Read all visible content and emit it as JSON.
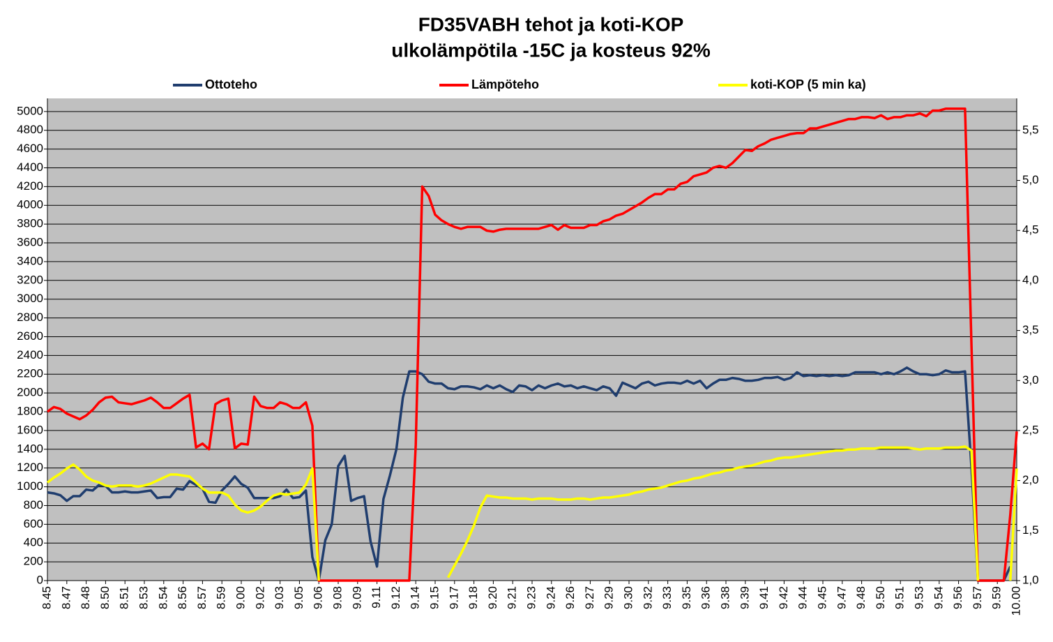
{
  "chart_data": {
    "type": "line",
    "title": "FD35VABH  tehot ja koti-KOP",
    "subtitle": "ulkolämpötila  -15C ja kosteus 92%",
    "categories": [
      "8.45",
      null,
      null,
      "8.47",
      null,
      null,
      "8.48",
      null,
      null,
      "8.50",
      null,
      null,
      "8.51",
      null,
      null,
      "8.53",
      null,
      null,
      "8.54",
      null,
      null,
      "8.56",
      null,
      null,
      "8.57",
      null,
      null,
      "8.59",
      null,
      null,
      "9.00",
      null,
      null,
      "9.02",
      null,
      null,
      "9.03",
      null,
      null,
      "9.05",
      null,
      null,
      "9.06",
      null,
      null,
      "9.08",
      null,
      null,
      "9.09",
      null,
      null,
      "9.11",
      null,
      null,
      "9.12",
      null,
      null,
      "9.14",
      null,
      null,
      "9.15",
      null,
      null,
      "9.17",
      null,
      null,
      "9.18",
      null,
      null,
      "9.20",
      null,
      null,
      "9.21",
      null,
      null,
      "9.23",
      null,
      null,
      "9.24",
      null,
      null,
      "9.26",
      null,
      null,
      "9.27",
      null,
      null,
      "9.29",
      null,
      null,
      "9.30",
      null,
      null,
      "9.32",
      null,
      null,
      "9.33",
      null,
      null,
      "9.35",
      null,
      null,
      "9.36",
      null,
      null,
      "9.38",
      null,
      null,
      "9.39",
      null,
      null,
      "9.41",
      null,
      null,
      "9.42",
      null,
      null,
      "9.44",
      null,
      null,
      "9.45",
      null,
      null,
      "9.47",
      null,
      null,
      "9.48",
      null,
      null,
      "9.50",
      null,
      null,
      "9.51",
      null,
      null,
      "9.53",
      null,
      null,
      "9.54",
      null,
      null,
      "9.56",
      null,
      null,
      "9.57",
      null,
      null,
      "9.59",
      null,
      null,
      "10.00"
    ],
    "series": [
      {
        "name": "Ottoteho",
        "color": "#1f3d6e",
        "values": [
          940,
          930,
          910,
          850,
          900,
          900,
          970,
          960,
          1020,
          1010,
          940,
          940,
          950,
          940,
          940,
          950,
          960,
          880,
          890,
          890,
          980,
          970,
          1060,
          1020,
          980,
          840,
          830,
          960,
          1030,
          1110,
          1030,
          990,
          880,
          880,
          880,
          880,
          900,
          970,
          880,
          890,
          960,
          250,
          0,
          430,
          600,
          1220,
          1330,
          850,
          880,
          900,
          420,
          150,
          870,
          1120,
          1400,
          1950,
          2230,
          2230,
          2200,
          2120,
          2100,
          2100,
          2050,
          2040,
          2070,
          2070,
          2060,
          2040,
          2080,
          2050,
          2080,
          2040,
          2010,
          2080,
          2070,
          2030,
          2080,
          2050,
          2080,
          2100,
          2070,
          2080,
          2050,
          2070,
          2050,
          2030,
          2070,
          2050,
          1970,
          2110,
          2080,
          2050,
          2100,
          2120,
          2080,
          2100,
          2110,
          2110,
          2100,
          2130,
          2100,
          2130,
          2050,
          2100,
          2140,
          2140,
          2160,
          2150,
          2130,
          2130,
          2140,
          2160,
          2160,
          2170,
          2140,
          2160,
          2220,
          2180,
          2190,
          2180,
          2190,
          2180,
          2190,
          2180,
          2190,
          2220,
          2220,
          2220,
          2220,
          2200,
          2220,
          2200,
          2230,
          2270,
          2230,
          2200,
          2200,
          2190,
          2200,
          2240,
          2220,
          2220,
          2230,
          1200,
          0,
          0,
          0,
          0,
          0,
          150,
          null
        ]
      },
      {
        "name": "Lämpöteho",
        "color": "#ff0000",
        "values": [
          1800,
          1850,
          1830,
          1780,
          1750,
          1720,
          1760,
          1820,
          1900,
          1950,
          1960,
          1900,
          1890,
          1880,
          1900,
          1920,
          1950,
          1900,
          1840,
          1840,
          1890,
          1940,
          1980,
          1420,
          1460,
          1400,
          1880,
          1920,
          1940,
          1410,
          1460,
          1450,
          1960,
          1860,
          1840,
          1840,
          1900,
          1880,
          1840,
          1840,
          1900,
          1650,
          0,
          0,
          0,
          0,
          0,
          0,
          0,
          0,
          0,
          0,
          0,
          0,
          0,
          0,
          0,
          1450,
          4200,
          4100,
          3900,
          3840,
          3800,
          3770,
          3750,
          3770,
          3770,
          3770,
          3730,
          3720,
          3740,
          3750,
          3750,
          3750,
          3750,
          3750,
          3750,
          3770,
          3790,
          3740,
          3790,
          3760,
          3760,
          3760,
          3790,
          3790,
          3830,
          3850,
          3890,
          3910,
          3950,
          3990,
          4030,
          4080,
          4120,
          4120,
          4170,
          4170,
          4230,
          4250,
          4310,
          4330,
          4350,
          4400,
          4420,
          4400,
          4450,
          4520,
          4590,
          4580,
          4630,
          4660,
          4700,
          4720,
          4740,
          4760,
          4770,
          4770,
          4820,
          4820,
          4840,
          4860,
          4880,
          4900,
          4920,
          4920,
          4940,
          4940,
          4930,
          4960,
          4920,
          4940,
          4940,
          4960,
          4960,
          4980,
          4950,
          5010,
          5010,
          5030,
          5030,
          5030,
          5030,
          2500,
          0,
          0,
          0,
          0,
          0,
          700,
          1590
        ]
      },
      {
        "name": "koti-KOP (5 min ka)",
        "color": "#ffff00",
        "axis": "y2",
        "values": [
          1.98,
          2.03,
          2.07,
          2.12,
          2.16,
          2.11,
          2.04,
          2,
          1.98,
          1.95,
          1.94,
          1.95,
          1.95,
          1.95,
          1.94,
          1.95,
          1.97,
          2,
          2.03,
          2.06,
          2.06,
          2.05,
          2.04,
          1.98,
          1.92,
          1.88,
          1.88,
          1.88,
          1.85,
          1.76,
          1.7,
          1.68,
          1.7,
          1.74,
          1.8,
          1.85,
          1.87,
          1.86,
          1.87,
          1.88,
          1.96,
          2.12,
          1,
          null,
          null,
          null,
          null,
          null,
          null,
          null,
          null,
          null,
          null,
          null,
          null,
          null,
          null,
          null,
          null,
          null,
          null,
          null,
          1.03,
          1.15,
          1.27,
          1.4,
          1.55,
          1.73,
          1.85,
          1.84,
          1.83,
          1.83,
          1.82,
          1.82,
          1.82,
          1.81,
          1.82,
          1.82,
          1.82,
          1.81,
          1.81,
          1.81,
          1.82,
          1.82,
          1.81,
          1.82,
          1.83,
          1.83,
          1.84,
          1.85,
          1.86,
          1.88,
          1.89,
          1.91,
          1.92,
          1.93,
          1.95,
          1.97,
          1.99,
          2,
          2.02,
          2.03,
          2.05,
          2.07,
          2.08,
          2.1,
          2.11,
          2.13,
          2.14,
          2.15,
          2.17,
          2.19,
          2.2,
          2.22,
          2.23,
          2.23,
          2.24,
          2.25,
          2.26,
          2.27,
          2.28,
          2.29,
          2.3,
          2.3,
          2.31,
          2.31,
          2.32,
          2.32,
          2.32,
          2.33,
          2.33,
          2.33,
          2.33,
          2.33,
          2.32,
          2.31,
          2.32,
          2.32,
          2.32,
          2.33,
          2.33,
          2.33,
          2.34,
          2.3,
          1,
          null,
          null,
          null,
          null,
          1,
          2.12
        ]
      }
    ],
    "ylim": [
      0,
      5140
    ],
    "yticks": [
      0,
      200,
      400,
      600,
      800,
      1000,
      1200,
      1400,
      1600,
      1800,
      2000,
      2200,
      2400,
      2600,
      2800,
      3000,
      3200,
      3400,
      3600,
      3800,
      4000,
      4200,
      4400,
      4600,
      4800,
      5000
    ],
    "y2lim": [
      1,
      5.82
    ],
    "y2ticks": [
      {
        "value": 1,
        "label": "1,0"
      },
      {
        "value": 1.5,
        "label": "1,5"
      },
      {
        "value": 2,
        "label": "2,0"
      },
      {
        "value": 2.5,
        "label": "2,5"
      },
      {
        "value": 3,
        "label": "3,0"
      },
      {
        "value": 3.5,
        "label": "3,5"
      },
      {
        "value": 4,
        "label": "4,0"
      },
      {
        "value": 4.5,
        "label": "4,5"
      },
      {
        "value": 5,
        "label": "5,0"
      },
      {
        "value": 5.5,
        "label": "5,5"
      }
    ],
    "grid": true,
    "legend": "top"
  }
}
